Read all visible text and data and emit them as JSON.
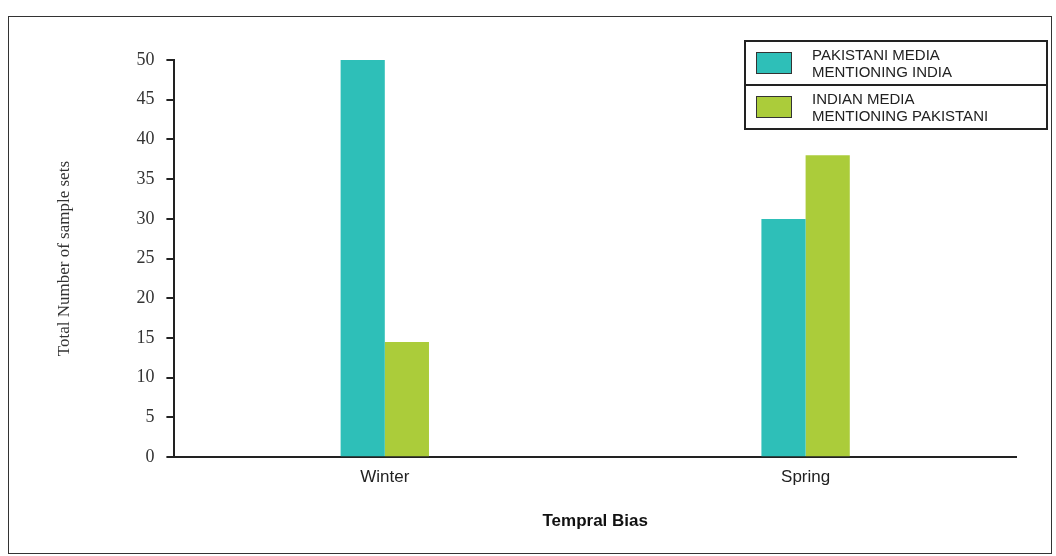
{
  "chart_data": {
    "type": "bar",
    "xlabel": "Tempral Bias",
    "ylabel": "Total Number of sample sets",
    "categories": [
      "Winter",
      "Spring"
    ],
    "series": [
      {
        "name": "PAKISTANI MEDIA MENTIONING INDIA",
        "color": "#2ebfb8",
        "values": [
          50,
          30
        ]
      },
      {
        "name": "INDIAN MEDIA MENTIONING PAKISTANI",
        "color": "#abcc3a",
        "values": [
          14.5,
          38
        ]
      }
    ],
    "ylim": [
      0,
      50
    ],
    "yticks": [
      0,
      5,
      10,
      15,
      20,
      25,
      30,
      35,
      40,
      45,
      50
    ],
    "grid": false,
    "legend": "top right"
  }
}
